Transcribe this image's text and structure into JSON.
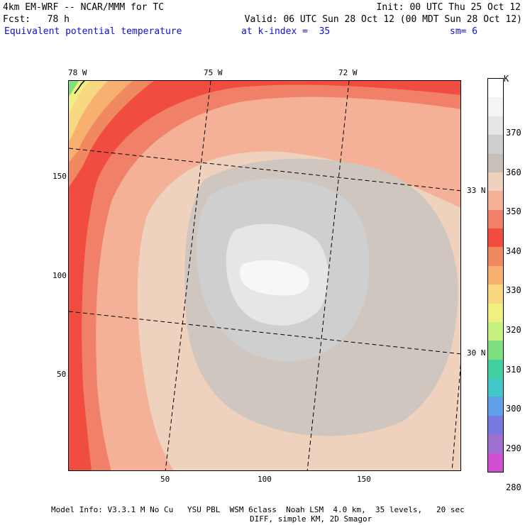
{
  "header": {
    "model_line": "4km EM-WRF -- NCAR/MMM for TC",
    "init_line": "Init: 00 UTC Thu 25 Oct 12",
    "fcst_line": "Fcst:   78 h",
    "valid_line": "Valid: 06 UTC Sun 28 Oct 12 (00 MDT Sun 28 Oct 12)",
    "field_name": "Equivalent potential temperature",
    "level_line": "at k-index =  35",
    "smooth_line": "sm= 6"
  },
  "map": {
    "top_longitudes": [
      "78 W",
      "75 W",
      "72 W"
    ],
    "right_latitudes": [
      "33 N",
      "30 N"
    ],
    "left_ticks": [
      "150",
      "100",
      "50"
    ],
    "bottom_ticks": [
      "50",
      "100",
      "150"
    ]
  },
  "colorbar": {
    "unit": "K",
    "labels": [
      "370",
      "360",
      "350",
      "340",
      "330",
      "320",
      "310",
      "300",
      "290",
      "280"
    ],
    "colors": [
      "#ffffff",
      "#f4f4f4",
      "#e6e6e6",
      "#cfcfcf",
      "#c8c0b8",
      "#efd2bd",
      "#f5b098",
      "#f08068",
      "#f04c40",
      "#f08860",
      "#f7b070",
      "#f8d880",
      "#f0f080",
      "#c8f080",
      "#80e080",
      "#40d0a0",
      "#40c8c8",
      "#60a0e8",
      "#7878e0",
      "#a070d0",
      "#d050d0"
    ]
  },
  "footer": {
    "line1": "Model Info: V3.3.1 M No Cu   YSU PBL  WSM 6class  Noah LSM  4.0 km,  35 levels,   20 sec",
    "line2": "DIFF, simple KM, 2D Smagor"
  }
}
